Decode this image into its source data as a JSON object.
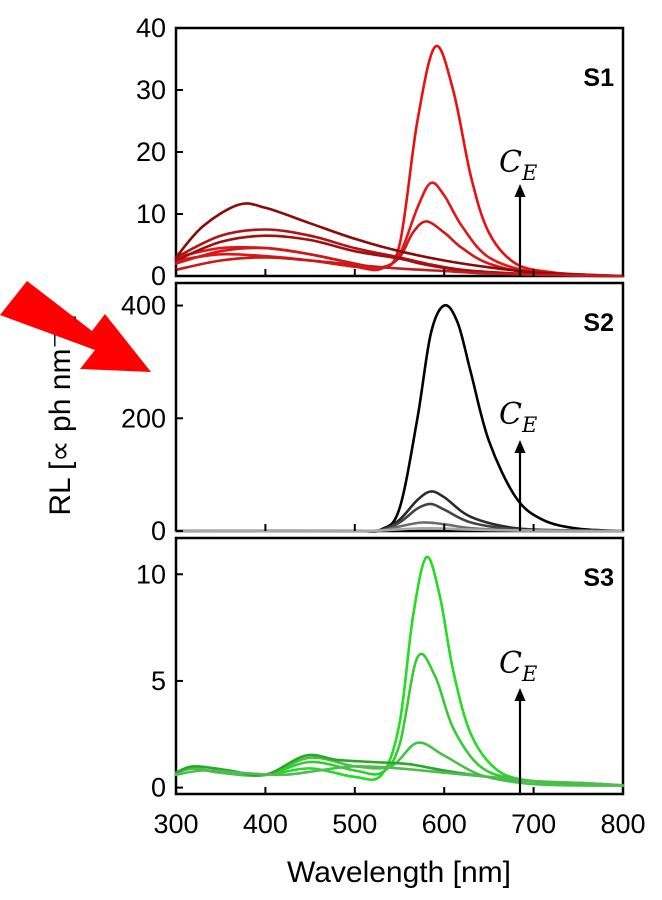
{
  "figure": {
    "ylabel": "RL [∝ ph nm⁻¹]",
    "xlabel": "Wavelength [nm]",
    "arrow_color": "#ff0000"
  },
  "chart_data": [
    {
      "type": "line",
      "panel_label": "S1",
      "annotation": {
        "main": "C",
        "sub": "E",
        "at_x": 688,
        "arrow": "up"
      },
      "xlim": [
        300,
        800
      ],
      "ylim": [
        0,
        40
      ],
      "yticks": [
        0,
        10,
        20,
        30,
        40
      ],
      "grid": false,
      "series": [
        {
          "color": "#e81010",
          "x": [
            300,
            350,
            400,
            450,
            500,
            530,
            550,
            570,
            590,
            610,
            630,
            650,
            680,
            720,
            760,
            800
          ],
          "y": [
            2.5,
            3.5,
            3.2,
            2.5,
            1.5,
            1.2,
            5,
            25,
            37,
            30,
            16,
            7,
            2,
            0.6,
            0.2,
            0
          ]
        },
        {
          "color": "#e01818",
          "x": [
            300,
            350,
            400,
            450,
            500,
            530,
            550,
            570,
            585,
            600,
            620,
            650,
            700,
            760,
            800
          ],
          "y": [
            3,
            4.5,
            4.5,
            3.5,
            2,
            1.3,
            3.5,
            11,
            15,
            13,
            8,
            3,
            0.6,
            0.1,
            0
          ]
        },
        {
          "color": "#d01a1a",
          "x": [
            300,
            350,
            400,
            450,
            500,
            530,
            550,
            565,
            580,
            600,
            620,
            650,
            700,
            760,
            800
          ],
          "y": [
            2,
            4,
            4.5,
            3.5,
            2,
            1.4,
            3,
            7,
            8.8,
            7,
            4.5,
            2,
            0.4,
            0.1,
            0
          ]
        },
        {
          "color": "#b01515",
          "x": [
            300,
            350,
            400,
            450,
            500,
            550,
            580,
            620,
            680,
            740,
            800
          ],
          "y": [
            3,
            6.5,
            7.5,
            6.5,
            4.5,
            3,
            2,
            1,
            0.4,
            0.1,
            0
          ]
        },
        {
          "color": "#a01010",
          "x": [
            300,
            350,
            400,
            450,
            500,
            550,
            580,
            620,
            680,
            740,
            800
          ],
          "y": [
            2.5,
            5.5,
            6.5,
            5.8,
            4,
            2.8,
            1.8,
            0.9,
            0.3,
            0.1,
            0
          ]
        },
        {
          "color": "#8b0a0a",
          "x": [
            300,
            330,
            370,
            400,
            450,
            500,
            550,
            600,
            650,
            700,
            760,
            800
          ],
          "y": [
            3,
            8,
            11.5,
            11,
            8.5,
            6,
            4,
            2.5,
            1.4,
            0.6,
            0.2,
            0
          ]
        },
        {
          "color": "#c41c1c",
          "x": [
            300,
            350,
            400,
            450,
            500,
            550,
            600,
            650,
            700,
            760,
            800
          ],
          "y": [
            1,
            2.5,
            3,
            2.5,
            1.8,
            1.2,
            0.8,
            0.4,
            0.2,
            0.1,
            0
          ]
        }
      ]
    },
    {
      "type": "line",
      "panel_label": "S2",
      "annotation": {
        "main": "C",
        "sub": "E",
        "at_x": 688,
        "arrow": "up"
      },
      "xlim": [
        300,
        800
      ],
      "ylim": [
        0,
        440
      ],
      "yticks": [
        0,
        200,
        400
      ],
      "grid": false,
      "series": [
        {
          "color": "#000000",
          "x": [
            300,
            400,
            500,
            530,
            550,
            570,
            585,
            600,
            615,
            630,
            650,
            680,
            710,
            750,
            800
          ],
          "y": [
            0,
            0,
            0,
            3,
            40,
            200,
            350,
            400,
            370,
            280,
            160,
            60,
            20,
            4,
            0
          ]
        },
        {
          "color": "#2b2b2b",
          "x": [
            300,
            400,
            500,
            530,
            550,
            570,
            585,
            600,
            630,
            680,
            740,
            800
          ],
          "y": [
            0,
            0,
            0,
            2,
            20,
            55,
            70,
            60,
            25,
            5,
            1,
            0
          ]
        },
        {
          "color": "#444444",
          "x": [
            300,
            400,
            500,
            530,
            550,
            570,
            585,
            600,
            630,
            680,
            740,
            800
          ],
          "y": [
            0,
            0,
            0,
            2,
            15,
            40,
            48,
            38,
            15,
            3,
            1,
            0
          ]
        },
        {
          "color": "#6d6d6d",
          "x": [
            300,
            400,
            500,
            530,
            550,
            575,
            600,
            630,
            680,
            740,
            800
          ],
          "y": [
            0,
            0,
            0,
            1,
            8,
            15,
            12,
            5,
            1,
            0,
            0
          ]
        },
        {
          "color": "#a8a8a8",
          "x": [
            300,
            500,
            550,
            580,
            620,
            680,
            800
          ],
          "y": [
            0,
            0,
            3,
            5,
            3,
            1,
            0
          ]
        }
      ]
    },
    {
      "type": "line",
      "panel_label": "S3",
      "annotation": {
        "main": "C",
        "sub": "E",
        "at_x": 688,
        "arrow": "up"
      },
      "xlim": [
        300,
        800
      ],
      "ylim": [
        -0.3,
        11.7
      ],
      "yticks": [
        0,
        5,
        10
      ],
      "grid": false,
      "series": [
        {
          "color": "#22dd22",
          "x": [
            300,
            320,
            350,
            400,
            450,
            500,
            530,
            550,
            565,
            580,
            595,
            610,
            630,
            660,
            700,
            750,
            800
          ],
          "y": [
            0.7,
            0.9,
            0.7,
            0.6,
            0.9,
            0.5,
            0.6,
            3,
            8,
            10.8,
            9,
            5.5,
            2.5,
            0.8,
            0.3,
            0.2,
            0.1
          ]
        },
        {
          "color": "#33cc33",
          "x": [
            300,
            320,
            350,
            400,
            450,
            500,
            530,
            550,
            570,
            590,
            610,
            640,
            680,
            740,
            800
          ],
          "y": [
            0.7,
            0.9,
            0.7,
            0.6,
            1.2,
            0.8,
            0.7,
            2,
            6.1,
            5.2,
            2.8,
            1,
            0.4,
            0.2,
            0.1
          ]
        },
        {
          "color": "#44c444",
          "x": [
            300,
            320,
            350,
            400,
            450,
            500,
            540,
            570,
            600,
            640,
            690,
            750,
            800
          ],
          "y": [
            0.7,
            0.9,
            0.7,
            0.6,
            1.4,
            1,
            1,
            2.1,
            1.5,
            0.6,
            0.2,
            0.1,
            0.1
          ]
        },
        {
          "color": "#2aa82a",
          "x": [
            300,
            320,
            360,
            400,
            445,
            480,
            520,
            560,
            600,
            650,
            700,
            760,
            800
          ],
          "y": [
            0.7,
            1,
            0.8,
            0.6,
            1.5,
            1.3,
            1.2,
            1.1,
            0.8,
            0.5,
            0.3,
            0.2,
            0.1
          ]
        },
        {
          "color": "#55b855",
          "x": [
            300,
            330,
            370,
            420,
            460,
            500,
            550,
            600,
            650,
            700,
            760,
            800
          ],
          "y": [
            0.6,
            0.8,
            0.7,
            0.6,
            0.8,
            1,
            0.9,
            0.7,
            0.5,
            0.3,
            0.2,
            0.1
          ]
        }
      ]
    }
  ]
}
